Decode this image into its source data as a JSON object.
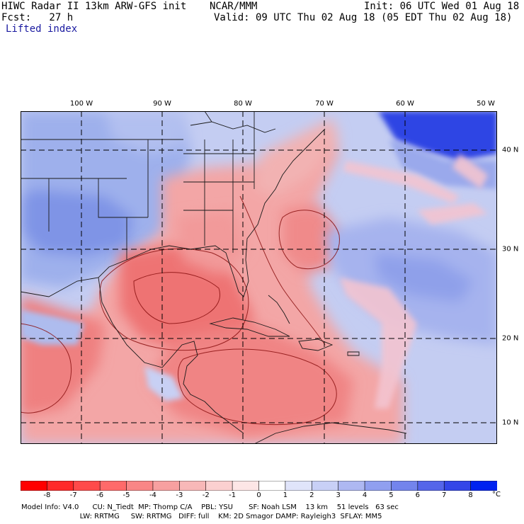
{
  "header": {
    "line1_left": "HIWC Radar II 13km ARW-GFS init",
    "line1_org": "NCAR/MMM",
    "line1_right": "Init: 06 UTC Wed 01 Aug 18",
    "line2_left": "Fcst:   27 h",
    "line2_right": "Valid: 09 UTC Thu 02 Aug 18 (05 EDT Thu 02 Aug 18)",
    "field": "Lifted index"
  },
  "map": {
    "longitude_labels": [
      "100 W",
      "90 W",
      "80 W",
      "70 W",
      "60 W",
      "50 W"
    ],
    "latitude_labels": [
      "40 N",
      "30 N",
      "20 N",
      "10 N"
    ],
    "colors": {
      "ocean_stable": "#bcc8f0",
      "land_stable": "#9fb2ec",
      "unstable": "#f4a0a0",
      "very_unstable": "#ef7070"
    }
  },
  "colorbar": {
    "labels": [
      "-8",
      "-7",
      "-6",
      "-5",
      "-4",
      "-3",
      "-2",
      "-1",
      "0",
      "1",
      "2",
      "3",
      "4",
      "5",
      "6",
      "7",
      "8"
    ],
    "unit": "°C",
    "colors": [
      "#ff0000",
      "#ff2a2a",
      "#ff4a4a",
      "#ff6a6a",
      "#f98686",
      "#f7a0a0",
      "#f8b8b8",
      "#fbd0d0",
      "#fde6e6",
      "#ffffff",
      "#e0e4fa",
      "#c8d0f6",
      "#aeb8f2",
      "#909ff0",
      "#7384ec",
      "#5565ea",
      "#3446e8",
      "#0022f0"
    ]
  },
  "footer": {
    "line1": "Model Info: V4.0      CU: N_Tiedt  MP: Thomp C/A    PBL: YSU       SF: Noah LSM    13 km    51 levels   63 sec",
    "line2": "                          LW: RRTMG     SW: RRTMG   DIFF: full    KM: 2D Smagor DAMP: Rayleigh3  SFLAY: MM5"
  }
}
